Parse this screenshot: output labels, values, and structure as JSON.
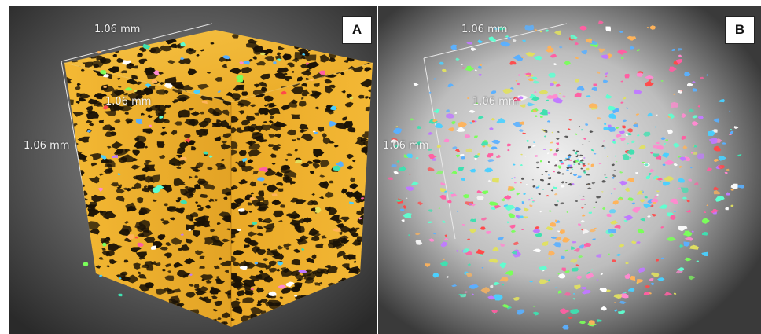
{
  "panels": [
    {
      "label": "A",
      "dimensions": {
        "top": "1.06 mm",
        "depth": "1.06 mm",
        "height": "1.06 mm"
      },
      "colors": {
        "solid": "#f0b22f",
        "pores": "#1a1206",
        "background_center": "#9a9a9a",
        "background_edge": "#2a2a2a"
      }
    },
    {
      "label": "B",
      "dimensions": {
        "top": "1.06 mm",
        "depth": "1.06 mm",
        "height": "1.06 mm"
      },
      "colors": {
        "background_center": "#f2f2f2",
        "background_edge": "#3a3a3a"
      }
    }
  ],
  "particle_palette": [
    "#ff5fa2",
    "#5fffd0",
    "#7aff5a",
    "#ff4a4a",
    "#5ab0ff",
    "#ffb35a",
    "#c07aff",
    "#ffffff",
    "#3fe0b0",
    "#e0e060",
    "#ff8ad0",
    "#4ad0ff"
  ]
}
